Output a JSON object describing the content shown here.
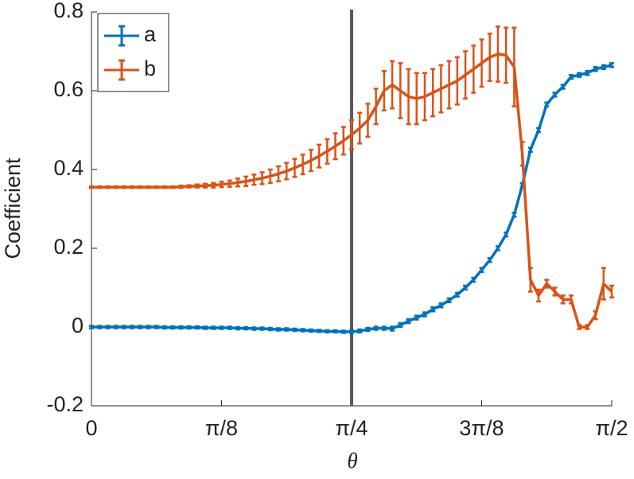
{
  "chart_data": {
    "type": "errorbar-line",
    "xlabel": "θ",
    "ylabel": "Coefficient",
    "x": [
      0,
      0.0245,
      0.0491,
      0.0736,
      0.0982,
      0.1227,
      0.1473,
      0.1718,
      0.1963,
      0.2209,
      0.2454,
      0.27,
      0.2945,
      0.3191,
      0.3436,
      0.3682,
      0.3927,
      0.4172,
      0.4418,
      0.4663,
      0.4909,
      0.5154,
      0.54,
      0.5645,
      0.589,
      0.6136,
      0.6381,
      0.6627,
      0.6872,
      0.7118,
      0.7363,
      0.7609,
      0.7854,
      0.8099,
      0.8345,
      0.859,
      0.8836,
      0.9081,
      0.9327,
      0.9572,
      0.9817,
      1.0063,
      1.0308,
      1.0554,
      1.0799,
      1.1045,
      1.129,
      1.1536,
      1.1781,
      1.2026,
      1.2272,
      1.2517,
      1.2763,
      1.3008,
      1.3254,
      1.3499,
      1.3744,
      1.399,
      1.4235,
      1.4481,
      1.4726,
      1.4972,
      1.5217,
      1.5463,
      1.5708
    ],
    "series": [
      {
        "name": "a",
        "color": "#0072bd",
        "values": [
          0,
          0,
          0,
          0,
          0,
          0,
          0,
          0,
          0,
          -0.001,
          -0.001,
          -0.001,
          -0.001,
          -0.001,
          -0.002,
          -0.002,
          -0.002,
          -0.002,
          -0.003,
          -0.003,
          -0.004,
          -0.004,
          -0.005,
          -0.006,
          -0.006,
          -0.007,
          -0.008,
          -0.009,
          -0.01,
          -0.011,
          -0.011,
          -0.012,
          -0.012,
          -0.01,
          -0.006,
          -0.003,
          -0.003,
          -0.004,
          0.005,
          0.015,
          0.024,
          0.032,
          0.045,
          0.055,
          0.068,
          0.082,
          0.1,
          0.12,
          0.145,
          0.17,
          0.2,
          0.235,
          0.285,
          0.36,
          0.45,
          0.5,
          0.565,
          0.59,
          0.61,
          0.635,
          0.64,
          0.645,
          0.655,
          0.66,
          0.665
        ],
        "errors": [
          0.003,
          0.003,
          0.003,
          0.003,
          0.003,
          0.003,
          0.003,
          0.003,
          0.003,
          0.003,
          0.003,
          0.003,
          0.003,
          0.003,
          0.003,
          0.003,
          0.003,
          0.003,
          0.003,
          0.003,
          0.003,
          0.003,
          0.003,
          0.003,
          0.003,
          0.003,
          0.003,
          0.003,
          0.003,
          0.003,
          0.003,
          0.003,
          0.003,
          0.004,
          0.004,
          0.004,
          0.004,
          0.005,
          0.005,
          0.005,
          0.005,
          0.005,
          0.005,
          0.005,
          0.005,
          0.005,
          0.005,
          0.005,
          0.005,
          0.005,
          0.005,
          0.005,
          0.005,
          0.005,
          0.005,
          0.005,
          0.005,
          0.005,
          0.005,
          0.005,
          0.005,
          0.005,
          0.005,
          0.005,
          0.005
        ]
      },
      {
        "name": "b",
        "color": "#d95319",
        "values": [
          0.355,
          0.355,
          0.355,
          0.355,
          0.355,
          0.355,
          0.355,
          0.355,
          0.355,
          0.355,
          0.355,
          0.356,
          0.357,
          0.358,
          0.359,
          0.36,
          0.362,
          0.364,
          0.367,
          0.37,
          0.374,
          0.378,
          0.383,
          0.389,
          0.396,
          0.404,
          0.413,
          0.423,
          0.434,
          0.446,
          0.459,
          0.473,
          0.488,
          0.505,
          0.525,
          0.56,
          0.6,
          0.615,
          0.6,
          0.585,
          0.58,
          0.585,
          0.595,
          0.605,
          0.615,
          0.625,
          0.64,
          0.655,
          0.67,
          0.685,
          0.693,
          0.69,
          0.66,
          0.44,
          0.12,
          0.08,
          0.11,
          0.09,
          0.07,
          0.07,
          0.0,
          0.0,
          0.03,
          0.11,
          0.09
        ],
        "errors": [
          0.002,
          0.002,
          0.002,
          0.002,
          0.002,
          0.002,
          0.002,
          0.002,
          0.002,
          0.002,
          0.002,
          0.003,
          0.003,
          0.004,
          0.005,
          0.006,
          0.007,
          0.008,
          0.01,
          0.012,
          0.013,
          0.015,
          0.017,
          0.019,
          0.021,
          0.023,
          0.025,
          0.027,
          0.029,
          0.031,
          0.033,
          0.035,
          0.037,
          0.039,
          0.042,
          0.045,
          0.05,
          0.06,
          0.07,
          0.07,
          0.065,
          0.06,
          0.06,
          0.06,
          0.06,
          0.06,
          0.06,
          0.06,
          0.06,
          0.06,
          0.07,
          0.07,
          0.1,
          0.03,
          0.03,
          0.015,
          0.01,
          0.01,
          0.01,
          0.01,
          0.005,
          0.005,
          0.01,
          0.04,
          0.015
        ]
      }
    ],
    "vline": 0.7854,
    "xlim": [
      0,
      1.5708
    ],
    "xticks": [
      0,
      {
        "value": 0.3927,
        "label": "π/8"
      },
      {
        "value": 0.7854,
        "label": "π/4"
      },
      {
        "value": 1.1781,
        "label": "3π/8"
      },
      {
        "value": 1.5708,
        "label": "π/2"
      }
    ],
    "ylim": [
      -0.2,
      0.8
    ],
    "yticks": [
      -0.2,
      0,
      0.2,
      0.4,
      0.6,
      0.8
    ],
    "legend": "upper left"
  }
}
